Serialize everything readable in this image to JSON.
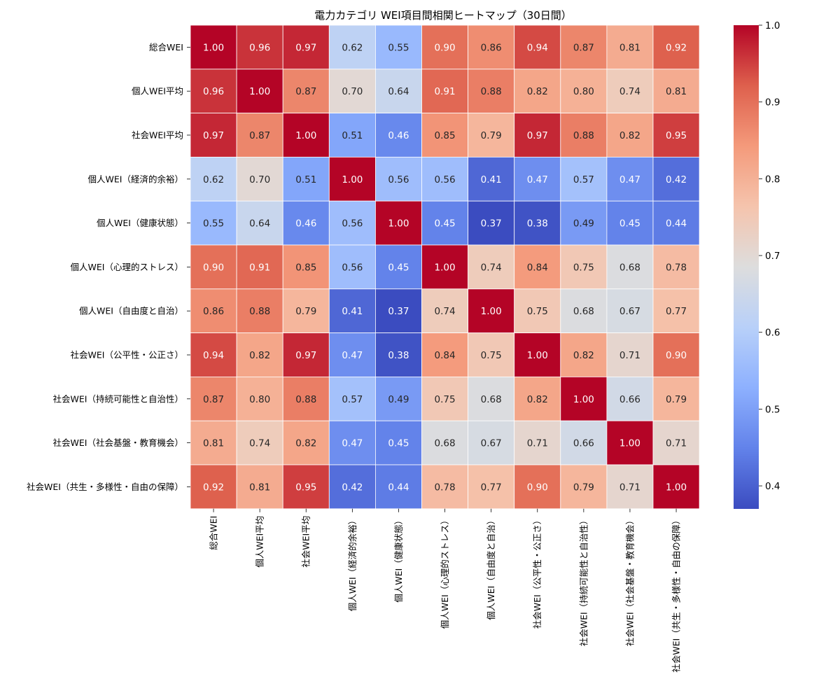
{
  "chart_data": {
    "type": "heatmap",
    "title": "電力カテゴリ WEI項目間相関ヒートマップ（30日間）",
    "labels": [
      "総合WEI",
      "個人WEI平均",
      "社会WEI平均",
      "個人WEI（経済的余裕）",
      "個人WEI（健康状態）",
      "個人WEI（心理的ストレス）",
      "個人WEI（自由度と自治）",
      "社会WEI（公平性・公正さ）",
      "社会WEI（持続可能性と自治性）",
      "社会WEI（社会基盤・教育機会）",
      "社会WEI（共生・多様性・自由の保障）"
    ],
    "matrix": [
      [
        1.0,
        0.96,
        0.97,
        0.62,
        0.55,
        0.9,
        0.86,
        0.94,
        0.87,
        0.81,
        0.92
      ],
      [
        0.96,
        1.0,
        0.87,
        0.7,
        0.64,
        0.91,
        0.88,
        0.82,
        0.8,
        0.74,
        0.81
      ],
      [
        0.97,
        0.87,
        1.0,
        0.51,
        0.46,
        0.85,
        0.79,
        0.97,
        0.88,
        0.82,
        0.95
      ],
      [
        0.62,
        0.7,
        0.51,
        1.0,
        0.56,
        0.56,
        0.41,
        0.47,
        0.57,
        0.47,
        0.42
      ],
      [
        0.55,
        0.64,
        0.46,
        0.56,
        1.0,
        0.45,
        0.37,
        0.38,
        0.49,
        0.45,
        0.44
      ],
      [
        0.9,
        0.91,
        0.85,
        0.56,
        0.45,
        1.0,
        0.74,
        0.84,
        0.75,
        0.68,
        0.78
      ],
      [
        0.86,
        0.88,
        0.79,
        0.41,
        0.37,
        0.74,
        1.0,
        0.75,
        0.68,
        0.67,
        0.77
      ],
      [
        0.94,
        0.82,
        0.97,
        0.47,
        0.38,
        0.84,
        0.75,
        1.0,
        0.82,
        0.71,
        0.9
      ],
      [
        0.87,
        0.8,
        0.88,
        0.57,
        0.49,
        0.75,
        0.68,
        0.82,
        1.0,
        0.66,
        0.79
      ],
      [
        0.81,
        0.74,
        0.82,
        0.47,
        0.45,
        0.68,
        0.67,
        0.71,
        0.66,
        1.0,
        0.71
      ],
      [
        0.92,
        0.81,
        0.95,
        0.42,
        0.44,
        0.78,
        0.77,
        0.9,
        0.79,
        0.71,
        1.0
      ]
    ],
    "value_format": "0.00",
    "colormap": "coolwarm",
    "vmin": 0.37,
    "vmax": 1.0,
    "colorbar_ticks": [
      0.4,
      0.5,
      0.6,
      0.7,
      0.8,
      0.9,
      1.0
    ],
    "colorbar_tick_labels": [
      "0.4",
      "0.5",
      "0.6",
      "0.7",
      "0.8",
      "0.9",
      "1.0"
    ],
    "cell_border_color": "#ffffff",
    "text_dark": "#262626",
    "text_light": "#ffffff"
  }
}
